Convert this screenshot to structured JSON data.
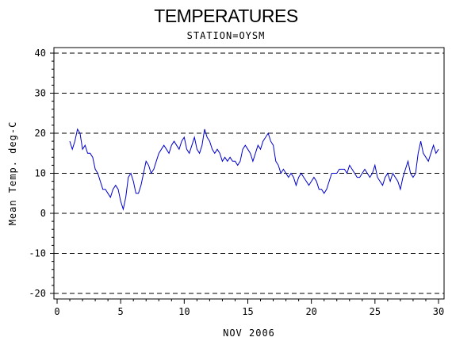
{
  "chart_data": {
    "type": "line",
    "title": "TEMPERATURES",
    "subtitle": "STATION=OYSM",
    "xlabel": "NOV 2006",
    "ylabel": "Mean Temp. deg-C",
    "xlim": [
      0,
      30
    ],
    "ylim": [
      -20,
      40
    ],
    "xticks": [
      0,
      5,
      10,
      15,
      20,
      25,
      30
    ],
    "yticks": [
      -20,
      -10,
      0,
      10,
      20,
      30,
      40
    ],
    "grid": "horizontal dashed",
    "colors": {
      "line": "#0000cc",
      "axis": "#000000",
      "grid": "#000000"
    },
    "series": [
      {
        "values": [
          [
            1.0,
            18
          ],
          [
            1.2,
            16
          ],
          [
            1.4,
            18
          ],
          [
            1.6,
            21
          ],
          [
            1.8,
            20
          ],
          [
            2.0,
            16
          ],
          [
            2.2,
            17
          ],
          [
            2.4,
            15
          ],
          [
            2.6,
            15
          ],
          [
            2.8,
            14
          ],
          [
            3.0,
            11
          ],
          [
            3.2,
            10
          ],
          [
            3.4,
            8
          ],
          [
            3.6,
            6
          ],
          [
            3.8,
            6
          ],
          [
            4.0,
            5
          ],
          [
            4.2,
            4
          ],
          [
            4.4,
            6
          ],
          [
            4.6,
            7
          ],
          [
            4.8,
            6
          ],
          [
            5.0,
            3
          ],
          [
            5.2,
            1
          ],
          [
            5.4,
            4
          ],
          [
            5.6,
            9
          ],
          [
            5.8,
            10
          ],
          [
            6.0,
            8
          ],
          [
            6.2,
            5
          ],
          [
            6.4,
            5
          ],
          [
            6.6,
            7
          ],
          [
            6.8,
            10
          ],
          [
            7.0,
            13
          ],
          [
            7.2,
            12
          ],
          [
            7.4,
            10
          ],
          [
            7.6,
            11
          ],
          [
            7.8,
            13
          ],
          [
            8.0,
            15
          ],
          [
            8.2,
            16
          ],
          [
            8.4,
            17
          ],
          [
            8.6,
            16
          ],
          [
            8.8,
            15
          ],
          [
            9.0,
            17
          ],
          [
            9.2,
            18
          ],
          [
            9.4,
            17
          ],
          [
            9.6,
            16
          ],
          [
            9.8,
            18
          ],
          [
            10.0,
            19
          ],
          [
            10.2,
            16
          ],
          [
            10.4,
            15
          ],
          [
            10.6,
            17
          ],
          [
            10.8,
            19
          ],
          [
            11.0,
            16
          ],
          [
            11.2,
            15
          ],
          [
            11.4,
            17
          ],
          [
            11.6,
            21
          ],
          [
            11.8,
            19
          ],
          [
            12.0,
            18
          ],
          [
            12.2,
            16
          ],
          [
            12.4,
            15
          ],
          [
            12.6,
            16
          ],
          [
            12.8,
            15
          ],
          [
            13.0,
            13
          ],
          [
            13.2,
            14
          ],
          [
            13.4,
            13
          ],
          [
            13.6,
            14
          ],
          [
            13.8,
            13
          ],
          [
            14.0,
            13
          ],
          [
            14.2,
            12
          ],
          [
            14.4,
            13
          ],
          [
            14.6,
            16
          ],
          [
            14.8,
            17
          ],
          [
            15.0,
            16
          ],
          [
            15.2,
            15
          ],
          [
            15.4,
            13
          ],
          [
            15.6,
            15
          ],
          [
            15.8,
            17
          ],
          [
            16.0,
            16
          ],
          [
            16.2,
            18
          ],
          [
            16.4,
            19
          ],
          [
            16.6,
            20
          ],
          [
            16.8,
            18
          ],
          [
            17.0,
            17
          ],
          [
            17.2,
            13
          ],
          [
            17.4,
            12
          ],
          [
            17.6,
            10
          ],
          [
            17.8,
            11
          ],
          [
            18.0,
            10
          ],
          [
            18.2,
            9
          ],
          [
            18.4,
            10
          ],
          [
            18.6,
            9
          ],
          [
            18.8,
            7
          ],
          [
            19.0,
            9
          ],
          [
            19.2,
            10
          ],
          [
            19.4,
            9
          ],
          [
            19.6,
            8
          ],
          [
            19.8,
            7
          ],
          [
            20.0,
            8
          ],
          [
            20.2,
            9
          ],
          [
            20.4,
            8
          ],
          [
            20.6,
            6
          ],
          [
            20.8,
            6
          ],
          [
            21.0,
            5
          ],
          [
            21.2,
            6
          ],
          [
            21.4,
            8
          ],
          [
            21.6,
            10
          ],
          [
            21.8,
            10
          ],
          [
            22.0,
            10
          ],
          [
            22.2,
            11
          ],
          [
            22.4,
            11
          ],
          [
            22.6,
            11
          ],
          [
            22.8,
            10
          ],
          [
            23.0,
            12
          ],
          [
            23.2,
            11
          ],
          [
            23.4,
            10
          ],
          [
            23.6,
            9
          ],
          [
            23.8,
            9
          ],
          [
            24.0,
            10
          ],
          [
            24.2,
            11
          ],
          [
            24.4,
            10
          ],
          [
            24.6,
            9
          ],
          [
            24.8,
            10
          ],
          [
            25.0,
            12
          ],
          [
            25.2,
            9
          ],
          [
            25.4,
            8
          ],
          [
            25.6,
            7
          ],
          [
            25.8,
            9
          ],
          [
            26.0,
            10
          ],
          [
            26.2,
            8
          ],
          [
            26.4,
            10
          ],
          [
            26.6,
            9
          ],
          [
            26.8,
            8
          ],
          [
            27.0,
            6
          ],
          [
            27.2,
            9
          ],
          [
            27.4,
            11
          ],
          [
            27.6,
            13
          ],
          [
            27.8,
            10
          ],
          [
            28.0,
            9
          ],
          [
            28.2,
            10
          ],
          [
            28.4,
            15
          ],
          [
            28.6,
            18
          ],
          [
            28.8,
            15
          ],
          [
            29.0,
            14
          ],
          [
            29.2,
            13
          ],
          [
            29.4,
            15
          ],
          [
            29.6,
            17
          ],
          [
            29.8,
            15
          ],
          [
            30.0,
            16
          ]
        ]
      }
    ]
  }
}
